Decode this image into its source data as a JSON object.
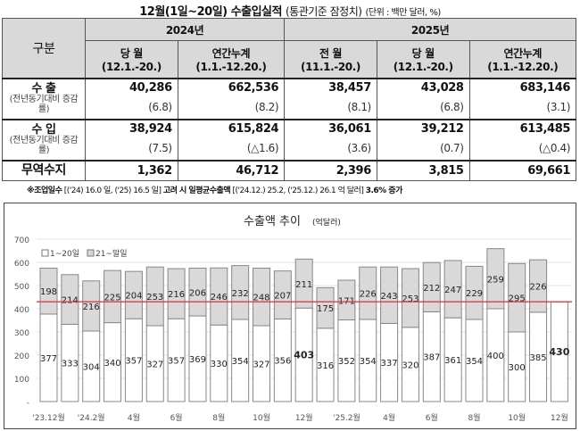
{
  "title": {
    "main": "12월(1일~20일) 수출입실적",
    "sub": "(통관기준 잠정치)",
    "unit": "(단위 : 백만 달러, %)"
  },
  "table": {
    "corner": "구분",
    "years": [
      "2024년",
      "2025년"
    ],
    "columns": [
      {
        "label": "당 월",
        "period": "(12.1.-20.)"
      },
      {
        "label": "연간누계",
        "period": "(1.1.-12.20.)"
      },
      {
        "label": "전 월",
        "period": "(11.1.-20.)"
      },
      {
        "label": "당 월",
        "period": "(12.1.-20.)"
      },
      {
        "label": "연간누계",
        "period": "(1.1.-12.20.)"
      }
    ],
    "rows": [
      {
        "label": "수 출",
        "sublabel": "(전년동기대비 증감률)",
        "values": [
          "40,286",
          "662,536",
          "38,457",
          "43,028",
          "683,146"
        ],
        "rates": [
          "(6.8)",
          "(8.2)",
          "(8.1)",
          "(6.8)",
          "(3.1)"
        ]
      },
      {
        "label": "수 입",
        "sublabel": "(전년동기대비 증감률)",
        "values": [
          "38,924",
          "615,824",
          "36,061",
          "39,212",
          "613,485"
        ],
        "rates": [
          "(7.5)",
          "(△1.6)",
          "(3.6)",
          "(0.7)",
          "(△0.4)"
        ]
      },
      {
        "label": "무역수지",
        "values": [
          "1,362",
          "46,712",
          "2,396",
          "3,815",
          "69,661"
        ]
      }
    ]
  },
  "note": {
    "bold1": "※조업일수",
    "t1": " [('24) 16.0 일, ('25) 16.5 일] ",
    "bold2": "고려 시 일평균수출액",
    "t2": " [('24.12.) 25.2, ('25.12.) 26.1 억 달러] ",
    "bold3": "3.6% 증가"
  },
  "chart_data": {
    "type": "bar",
    "stacked": true,
    "title": "수출액 추이",
    "title_unit": "(억달러)",
    "ylim": [
      0,
      700
    ],
    "yticks": [
      0,
      100,
      200,
      300,
      400,
      500,
      600,
      700
    ],
    "ytick_labels": [
      "-",
      "100",
      "200",
      "300",
      "400",
      "500",
      "600",
      "700"
    ],
    "grid": true,
    "legend_position": "top-left",
    "categories": [
      "'23.12월",
      "'24.1월",
      "'24.2월",
      "3월",
      "4월",
      "5월",
      "6월",
      "7월",
      "8월",
      "9월",
      "10월",
      "11월",
      "12월",
      "'25.1월",
      "'25.2월",
      "3월",
      "4월",
      "5월",
      "6월",
      "7월",
      "8월",
      "9월",
      "10월",
      "11월",
      "12월"
    ],
    "xtick_labels": [
      "'23.12월",
      "",
      "'24.2월",
      "",
      "4월",
      "",
      "6월",
      "",
      "8월",
      "",
      "10월",
      "",
      "12월",
      "",
      "'25.2월",
      "",
      "4월",
      "",
      "6월",
      "",
      "8월",
      "",
      "10월",
      "",
      "12월"
    ],
    "series": [
      {
        "name": "1~20일",
        "color": "#ffffff",
        "values": [
          377,
          333,
          304,
          340,
          357,
          327,
          357,
          369,
          330,
          354,
          327,
          356,
          403,
          316,
          352,
          354,
          337,
          320,
          387,
          361,
          354,
          400,
          300,
          385,
          430
        ]
      },
      {
        "name": "21~말일",
        "color": "#d9d9d9",
        "values": [
          198,
          214,
          216,
          225,
          204,
          253,
          216,
          206,
          246,
          232,
          248,
          207,
          211,
          175,
          171,
          226,
          243,
          253,
          212,
          247,
          229,
          259,
          295,
          226,
          null
        ]
      }
    ],
    "bold_labels": [
      12,
      24
    ],
    "reference_line": {
      "value": 430,
      "color": "#e03c3c"
    }
  }
}
